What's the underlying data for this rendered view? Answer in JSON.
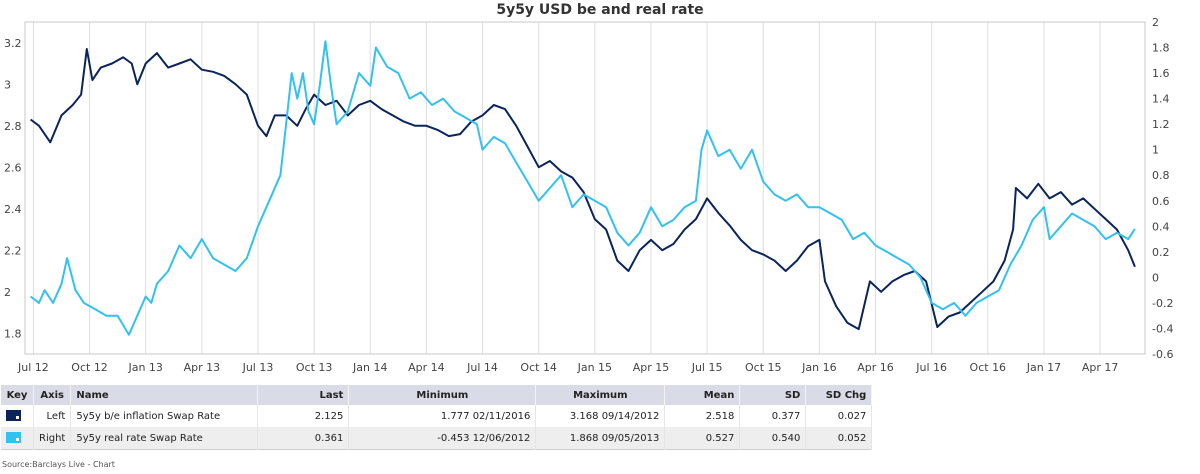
{
  "chart_data": {
    "type": "line",
    "title": "5y5y USD be and real rate",
    "x_labels": [
      "Jul 12",
      "Oct 12",
      "Jan 13",
      "Apr 13",
      "Jul 13",
      "Oct 13",
      "Jan 14",
      "Apr 14",
      "Jul 14",
      "Oct 14",
      "Jan 15",
      "Apr 15",
      "Jul 15",
      "Oct 15",
      "Jan 16",
      "Apr 16",
      "Jul 16",
      "Oct 16",
      "Jan 17",
      "Apr 17"
    ],
    "x_range": [
      -0.15,
      19.8
    ],
    "y_left": {
      "min": 1.7,
      "max": 3.3,
      "ticks": [
        "1.8",
        "2",
        "2.2",
        "2.4",
        "2.6",
        "2.8",
        "3",
        "3.2"
      ]
    },
    "y_right": {
      "min": -0.6,
      "max": 2,
      "ticks": [
        "-0.6",
        "-0.4",
        "-0.2",
        "0",
        "0.2",
        "0.4",
        "0.6",
        "0.8",
        "1",
        "1.2",
        "1.4",
        "1.6",
        "1.8",
        "2"
      ]
    },
    "grid": "vertical",
    "series": [
      {
        "name": "5y5y b/e inflation Swap Rate",
        "axis": "left",
        "color": "#0b2459",
        "points": [
          [
            -0.05,
            2.83
          ],
          [
            0.1,
            2.8
          ],
          [
            0.3,
            2.72
          ],
          [
            0.5,
            2.85
          ],
          [
            0.7,
            2.9
          ],
          [
            0.85,
            2.95
          ],
          [
            0.95,
            3.17
          ],
          [
            1.05,
            3.02
          ],
          [
            1.2,
            3.08
          ],
          [
            1.4,
            3.1
          ],
          [
            1.6,
            3.13
          ],
          [
            1.75,
            3.1
          ],
          [
            1.85,
            3.0
          ],
          [
            2.0,
            3.1
          ],
          [
            2.2,
            3.15
          ],
          [
            2.4,
            3.08
          ],
          [
            2.6,
            3.1
          ],
          [
            2.8,
            3.12
          ],
          [
            3.0,
            3.07
          ],
          [
            3.2,
            3.06
          ],
          [
            3.4,
            3.04
          ],
          [
            3.6,
            3.0
          ],
          [
            3.8,
            2.95
          ],
          [
            4.0,
            2.8
          ],
          [
            4.15,
            2.75
          ],
          [
            4.3,
            2.85
          ],
          [
            4.5,
            2.85
          ],
          [
            4.7,
            2.8
          ],
          [
            4.85,
            2.88
          ],
          [
            5.0,
            2.95
          ],
          [
            5.2,
            2.9
          ],
          [
            5.4,
            2.92
          ],
          [
            5.6,
            2.85
          ],
          [
            5.8,
            2.9
          ],
          [
            6.0,
            2.92
          ],
          [
            6.2,
            2.88
          ],
          [
            6.4,
            2.85
          ],
          [
            6.6,
            2.82
          ],
          [
            6.8,
            2.8
          ],
          [
            7.0,
            2.8
          ],
          [
            7.2,
            2.78
          ],
          [
            7.4,
            2.75
          ],
          [
            7.6,
            2.76
          ],
          [
            7.8,
            2.82
          ],
          [
            8.0,
            2.85
          ],
          [
            8.2,
            2.9
          ],
          [
            8.4,
            2.88
          ],
          [
            8.6,
            2.8
          ],
          [
            8.8,
            2.7
          ],
          [
            9.0,
            2.6
          ],
          [
            9.2,
            2.63
          ],
          [
            9.4,
            2.58
          ],
          [
            9.6,
            2.55
          ],
          [
            9.8,
            2.48
          ],
          [
            10.0,
            2.35
          ],
          [
            10.2,
            2.3
          ],
          [
            10.4,
            2.15
          ],
          [
            10.6,
            2.1
          ],
          [
            10.8,
            2.2
          ],
          [
            11.0,
            2.25
          ],
          [
            11.2,
            2.2
          ],
          [
            11.4,
            2.23
          ],
          [
            11.6,
            2.3
          ],
          [
            11.8,
            2.35
          ],
          [
            12.0,
            2.45
          ],
          [
            12.2,
            2.38
          ],
          [
            12.4,
            2.32
          ],
          [
            12.6,
            2.25
          ],
          [
            12.8,
            2.2
          ],
          [
            13.0,
            2.18
          ],
          [
            13.2,
            2.15
          ],
          [
            13.4,
            2.1
          ],
          [
            13.6,
            2.15
          ],
          [
            13.8,
            2.22
          ],
          [
            14.0,
            2.25
          ],
          [
            14.1,
            2.05
          ],
          [
            14.3,
            1.93
          ],
          [
            14.5,
            1.85
          ],
          [
            14.7,
            1.82
          ],
          [
            14.9,
            2.05
          ],
          [
            15.1,
            2.0
          ],
          [
            15.3,
            2.05
          ],
          [
            15.5,
            2.08
          ],
          [
            15.7,
            2.1
          ],
          [
            15.9,
            2.05
          ],
          [
            16.1,
            1.83
          ],
          [
            16.3,
            1.88
          ],
          [
            16.5,
            1.9
          ],
          [
            16.7,
            1.95
          ],
          [
            16.9,
            2.0
          ],
          [
            17.1,
            2.05
          ],
          [
            17.3,
            2.15
          ],
          [
            17.45,
            2.3
          ],
          [
            17.5,
            2.5
          ],
          [
            17.7,
            2.45
          ],
          [
            17.9,
            2.52
          ],
          [
            18.1,
            2.45
          ],
          [
            18.3,
            2.48
          ],
          [
            18.5,
            2.42
          ],
          [
            18.7,
            2.45
          ],
          [
            18.9,
            2.4
          ],
          [
            19.1,
            2.35
          ],
          [
            19.3,
            2.3
          ],
          [
            19.5,
            2.2
          ],
          [
            19.62,
            2.12
          ]
        ]
      },
      {
        "name": "5y5y real rate Swap Rate",
        "axis": "right",
        "color": "#33c1f0",
        "points": [
          [
            -0.05,
            -0.15
          ],
          [
            0.1,
            -0.2
          ],
          [
            0.2,
            -0.1
          ],
          [
            0.35,
            -0.2
          ],
          [
            0.5,
            -0.05
          ],
          [
            0.6,
            0.15
          ],
          [
            0.75,
            -0.1
          ],
          [
            0.9,
            -0.2
          ],
          [
            1.1,
            -0.25
          ],
          [
            1.3,
            -0.3
          ],
          [
            1.5,
            -0.3
          ],
          [
            1.7,
            -0.45
          ],
          [
            1.85,
            -0.3
          ],
          [
            2.0,
            -0.15
          ],
          [
            2.1,
            -0.2
          ],
          [
            2.2,
            -0.05
          ],
          [
            2.4,
            0.05
          ],
          [
            2.6,
            0.25
          ],
          [
            2.8,
            0.15
          ],
          [
            3.0,
            0.3
          ],
          [
            3.2,
            0.15
          ],
          [
            3.4,
            0.1
          ],
          [
            3.6,
            0.05
          ],
          [
            3.8,
            0.15
          ],
          [
            4.0,
            0.4
          ],
          [
            4.2,
            0.6
          ],
          [
            4.4,
            0.8
          ],
          [
            4.5,
            1.2
          ],
          [
            4.6,
            1.6
          ],
          [
            4.7,
            1.4
          ],
          [
            4.8,
            1.6
          ],
          [
            4.9,
            1.3
          ],
          [
            5.0,
            1.2
          ],
          [
            5.1,
            1.5
          ],
          [
            5.2,
            1.85
          ],
          [
            5.3,
            1.5
          ],
          [
            5.4,
            1.2
          ],
          [
            5.6,
            1.3
          ],
          [
            5.8,
            1.6
          ],
          [
            6.0,
            1.5
          ],
          [
            6.1,
            1.8
          ],
          [
            6.3,
            1.65
          ],
          [
            6.5,
            1.6
          ],
          [
            6.7,
            1.4
          ],
          [
            6.9,
            1.45
          ],
          [
            7.1,
            1.35
          ],
          [
            7.3,
            1.4
          ],
          [
            7.5,
            1.3
          ],
          [
            7.7,
            1.25
          ],
          [
            7.9,
            1.2
          ],
          [
            8.0,
            1.0
          ],
          [
            8.2,
            1.1
          ],
          [
            8.4,
            1.05
          ],
          [
            8.6,
            0.9
          ],
          [
            8.8,
            0.75
          ],
          [
            9.0,
            0.6
          ],
          [
            9.2,
            0.7
          ],
          [
            9.4,
            0.8
          ],
          [
            9.6,
            0.55
          ],
          [
            9.8,
            0.65
          ],
          [
            10.0,
            0.6
          ],
          [
            10.2,
            0.55
          ],
          [
            10.4,
            0.35
          ],
          [
            10.6,
            0.25
          ],
          [
            10.8,
            0.35
          ],
          [
            11.0,
            0.55
          ],
          [
            11.2,
            0.4
          ],
          [
            11.4,
            0.45
          ],
          [
            11.6,
            0.55
          ],
          [
            11.8,
            0.6
          ],
          [
            11.9,
            1.0
          ],
          [
            12.0,
            1.15
          ],
          [
            12.2,
            0.95
          ],
          [
            12.4,
            1.0
          ],
          [
            12.6,
            0.85
          ],
          [
            12.8,
            1.0
          ],
          [
            13.0,
            0.75
          ],
          [
            13.2,
            0.65
          ],
          [
            13.4,
            0.6
          ],
          [
            13.6,
            0.65
          ],
          [
            13.8,
            0.55
          ],
          [
            14.0,
            0.55
          ],
          [
            14.2,
            0.5
          ],
          [
            14.4,
            0.45
          ],
          [
            14.6,
            0.3
          ],
          [
            14.8,
            0.35
          ],
          [
            15.0,
            0.25
          ],
          [
            15.2,
            0.2
          ],
          [
            15.4,
            0.15
          ],
          [
            15.6,
            0.1
          ],
          [
            15.8,
            0.0
          ],
          [
            16.0,
            -0.2
          ],
          [
            16.2,
            -0.25
          ],
          [
            16.4,
            -0.2
          ],
          [
            16.6,
            -0.3
          ],
          [
            16.8,
            -0.2
          ],
          [
            17.0,
            -0.15
          ],
          [
            17.2,
            -0.1
          ],
          [
            17.4,
            0.1
          ],
          [
            17.6,
            0.25
          ],
          [
            17.8,
            0.45
          ],
          [
            18.0,
            0.55
          ],
          [
            18.1,
            0.3
          ],
          [
            18.3,
            0.4
          ],
          [
            18.5,
            0.5
          ],
          [
            18.7,
            0.45
          ],
          [
            18.9,
            0.4
          ],
          [
            19.1,
            0.3
          ],
          [
            19.3,
            0.35
          ],
          [
            19.5,
            0.3
          ],
          [
            19.62,
            0.38
          ]
        ]
      }
    ],
    "table": {
      "headers": [
        "Key",
        "Axis",
        "Name",
        "Last",
        "Minimum",
        "Maximum",
        "Mean",
        "SD",
        "SD Chg"
      ],
      "rows": [
        {
          "axis": "Left",
          "name": "5y5y b/e inflation Swap Rate",
          "last": "2.125",
          "minimum": "1.777 02/11/2016",
          "maximum": "3.168 09/14/2012",
          "mean": "2.518",
          "sd": "0.377",
          "sd_chg": "0.027",
          "color": "#0b2459"
        },
        {
          "axis": "Right",
          "name": "5y5y real rate Swap Rate",
          "last": "0.361",
          "minimum": "-0.453 12/06/2012",
          "maximum": "1.868 09/05/2013",
          "mean": "0.527",
          "sd": "0.540",
          "sd_chg": "0.052",
          "color": "#33c1f0"
        }
      ]
    },
    "source": "Source:Barclays Live - Chart"
  }
}
